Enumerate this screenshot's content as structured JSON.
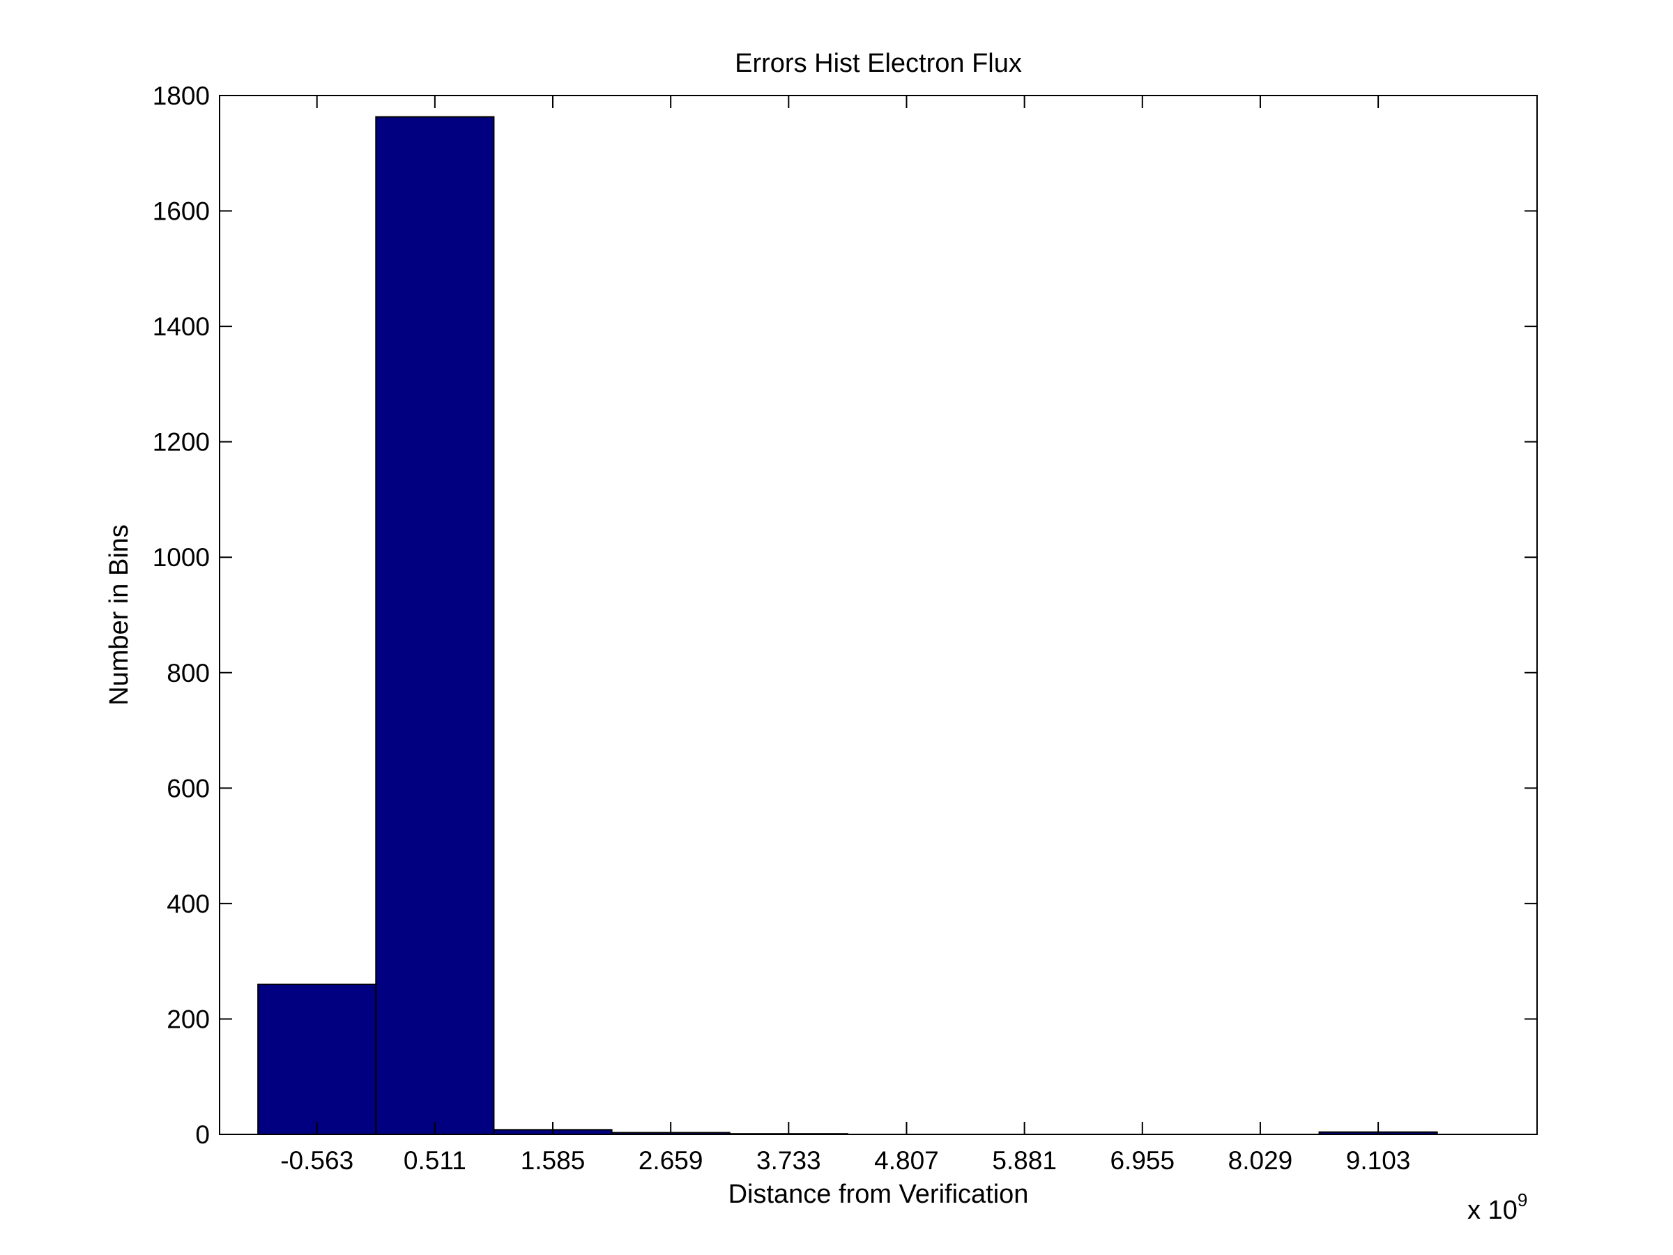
{
  "chart_data": {
    "type": "bar",
    "title": "Errors  Hist Electron Flux",
    "xlabel": "Distance from Verification",
    "ylabel": "Number in Bins",
    "x_multiplier_base": "x 10",
    "x_multiplier_exp": "9",
    "categories": [
      "-0.563",
      "0.511",
      "1.585",
      "2.659",
      "3.733",
      "4.807",
      "5.881",
      "6.955",
      "8.029",
      "9.103"
    ],
    "x": [
      -0.563,
      0.511,
      1.585,
      2.659,
      3.733,
      4.807,
      5.881,
      6.955,
      8.029,
      9.103
    ],
    "values": [
      260,
      1763,
      8,
      3,
      1,
      0,
      0,
      0,
      0,
      4
    ],
    "xlim": [
      -1.45,
      10.55
    ],
    "ylim": [
      0,
      1800
    ],
    "yticks": [
      0,
      200,
      400,
      600,
      800,
      1000,
      1200,
      1400,
      1600,
      1800
    ],
    "bar_color": "#000080",
    "grid": false,
    "legend": "none"
  }
}
